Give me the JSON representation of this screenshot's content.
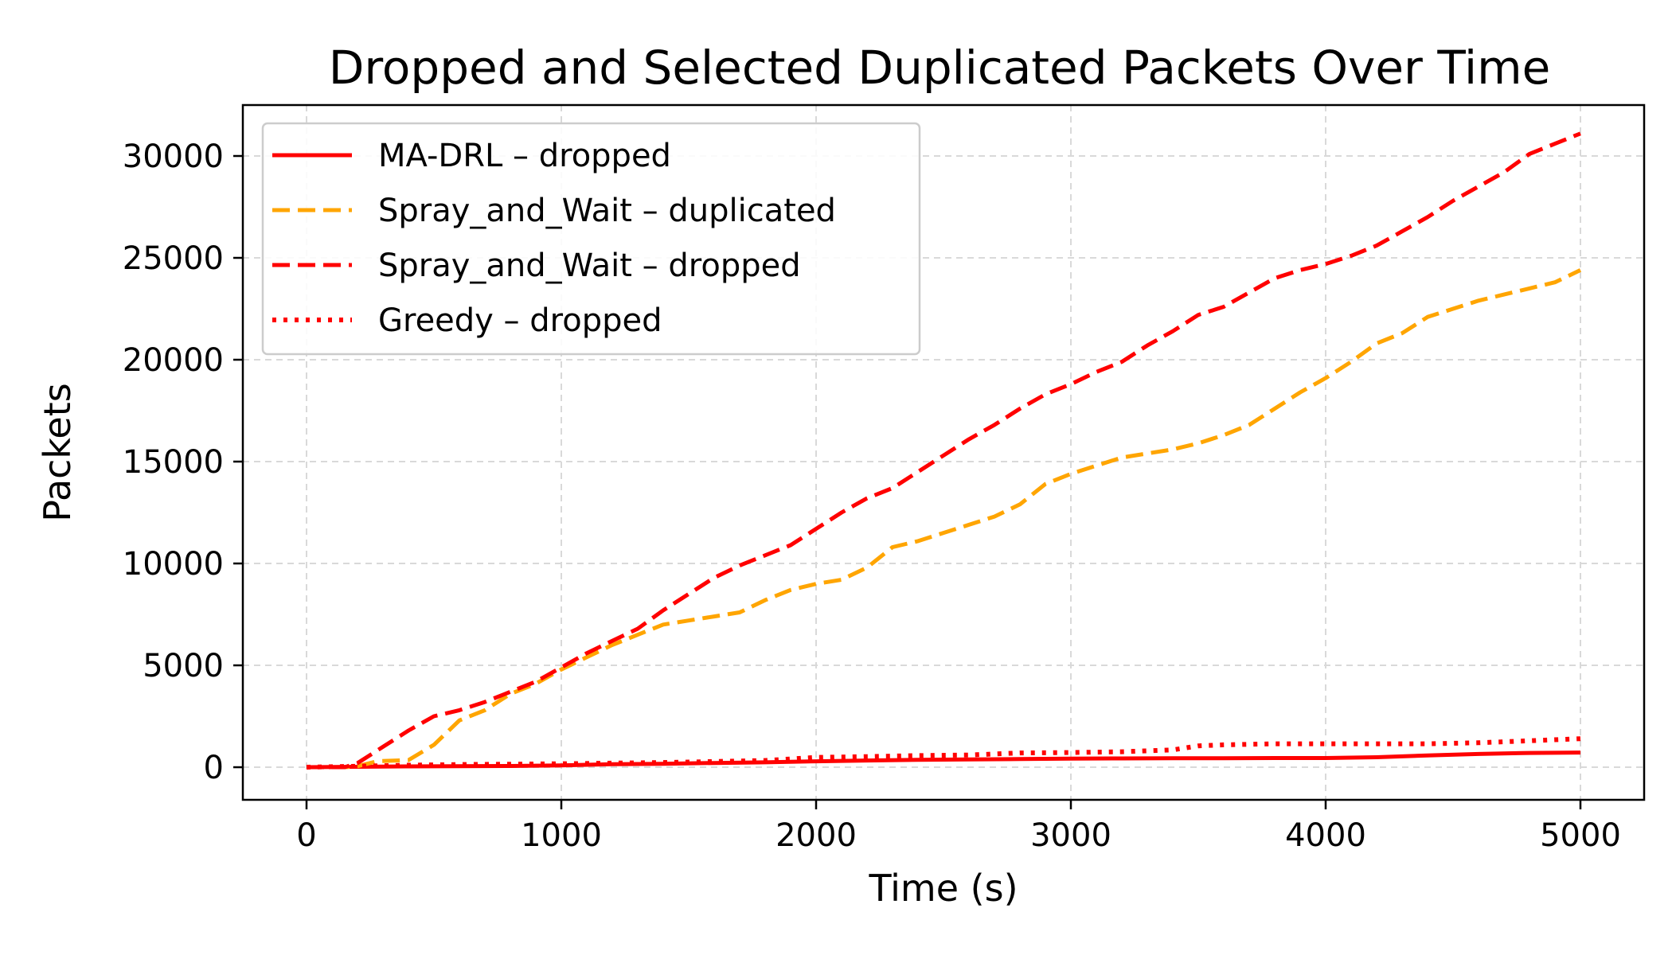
{
  "chart_data": {
    "type": "line",
    "title": "Dropped and Selected Duplicated Packets Over Time",
    "xlabel": "Time (s)",
    "ylabel": "Packets",
    "xlim": [
      -250,
      5250
    ],
    "ylim": [
      -1600,
      32500
    ],
    "xticks": [
      0,
      1000,
      2000,
      3000,
      4000,
      5000
    ],
    "yticks": [
      0,
      5000,
      10000,
      15000,
      20000,
      25000,
      30000
    ],
    "grid": true,
    "legend_position": "upper-left",
    "series": [
      {
        "name": "MA-DRL – dropped",
        "color": "#ff0000",
        "style": "solid",
        "x": [
          0,
          200,
          400,
          600,
          800,
          1000,
          1200,
          1400,
          1600,
          1800,
          2000,
          2200,
          2400,
          2600,
          2800,
          3000,
          3200,
          3400,
          3600,
          3800,
          4000,
          4200,
          4400,
          4600,
          4800,
          5000
        ],
        "y": [
          0,
          20,
          40,
          50,
          60,
          90,
          150,
          170,
          210,
          240,
          290,
          330,
          360,
          380,
          400,
          420,
          430,
          440,
          440,
          450,
          450,
          490,
          580,
          650,
          700,
          720
        ]
      },
      {
        "name": "Spray_and_Wait – duplicated",
        "color": "#ffa500",
        "style": "dashed",
        "x": [
          0,
          150,
          200,
          280,
          400,
          500,
          600,
          700,
          800,
          900,
          1000,
          1100,
          1200,
          1300,
          1400,
          1500,
          1600,
          1700,
          1800,
          1900,
          2000,
          2100,
          2200,
          2300,
          2400,
          2500,
          2600,
          2700,
          2800,
          2900,
          3000,
          3100,
          3200,
          3300,
          3400,
          3500,
          3600,
          3700,
          3800,
          3900,
          4000,
          4100,
          4200,
          4300,
          4400,
          4500,
          4600,
          4700,
          4800,
          4900,
          5000
        ],
        "y": [
          0,
          0,
          50,
          300,
          350,
          1100,
          2300,
          2800,
          3600,
          4100,
          4800,
          5400,
          6000,
          6500,
          7000,
          7200,
          7400,
          7600,
          8200,
          8700,
          9000,
          9200,
          9800,
          10800,
          11100,
          11500,
          11900,
          12300,
          12900,
          13900,
          14400,
          14800,
          15200,
          15400,
          15600,
          15900,
          16300,
          16800,
          17600,
          18400,
          19100,
          19900,
          20800,
          21300,
          22100,
          22500,
          22900,
          23200,
          23500,
          23800,
          24400
        ]
      },
      {
        "name": "Spray_and_Wait – dropped",
        "color": "#ff0000",
        "style": "dashed",
        "x": [
          0,
          150,
          200,
          300,
          400,
          500,
          600,
          700,
          800,
          900,
          1000,
          1100,
          1200,
          1300,
          1400,
          1500,
          1600,
          1700,
          1800,
          1900,
          2000,
          2100,
          2200,
          2300,
          2400,
          2500,
          2600,
          2700,
          2800,
          2900,
          3000,
          3100,
          3200,
          3300,
          3400,
          3500,
          3600,
          3700,
          3800,
          3900,
          4000,
          4100,
          4200,
          4300,
          4400,
          4500,
          4600,
          4700,
          4800,
          4900,
          5000
        ],
        "y": [
          0,
          0,
          200,
          1000,
          1800,
          2500,
          2800,
          3200,
          3700,
          4200,
          4900,
          5600,
          6200,
          6800,
          7700,
          8500,
          9300,
          9900,
          10400,
          10900,
          11700,
          12500,
          13200,
          13700,
          14500,
          15300,
          16100,
          16800,
          17600,
          18300,
          18800,
          19400,
          19900,
          20700,
          21400,
          22200,
          22600,
          23300,
          24000,
          24400,
          24700,
          25100,
          25600,
          26300,
          27000,
          27800,
          28500,
          29200,
          30100,
          30600,
          31100
        ]
      },
      {
        "name": "Greedy – dropped",
        "color": "#ff0000",
        "style": "dotted",
        "x": [
          0,
          200,
          400,
          600,
          800,
          1000,
          1200,
          1400,
          1600,
          1800,
          2000,
          2200,
          2400,
          2600,
          2800,
          3000,
          3200,
          3400,
          3500,
          3600,
          3800,
          4000,
          4200,
          4400,
          4600,
          4800,
          5000
        ],
        "y": [
          0,
          50,
          100,
          130,
          150,
          170,
          200,
          230,
          280,
          330,
          480,
          520,
          570,
          600,
          700,
          720,
          760,
          850,
          1050,
          1100,
          1150,
          1150,
          1150,
          1150,
          1200,
          1300,
          1400
        ]
      }
    ]
  }
}
